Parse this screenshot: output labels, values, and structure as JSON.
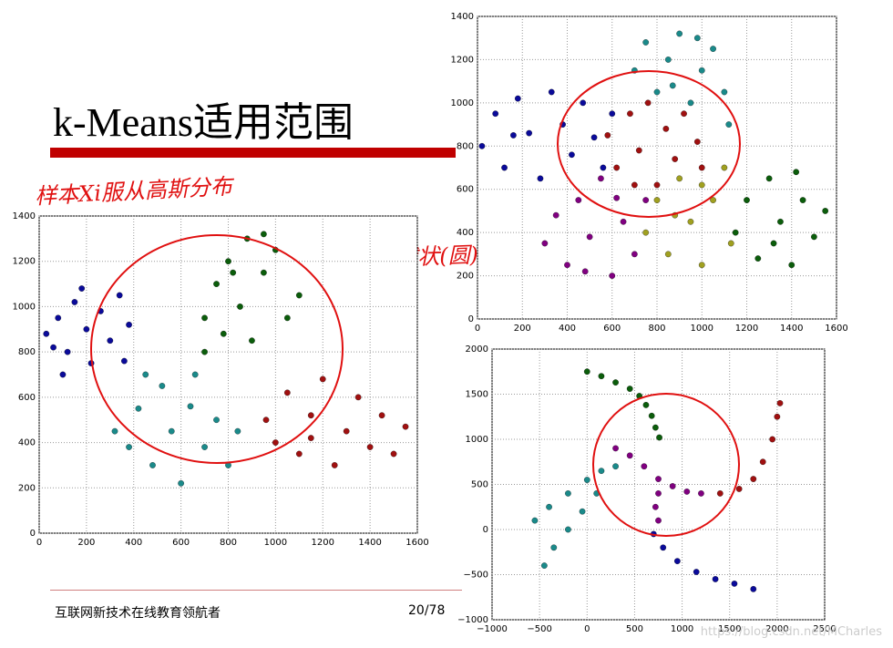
{
  "slide": {
    "title": "k-Means适用范围",
    "footer": "互联网新技术在线教育领航者",
    "page": "20/78",
    "annotations": [
      "样本Xi服从高斯分布",
      "簇→球状(圆)"
    ],
    "watermark": "https://blog.csdn.net/MCharles"
  },
  "chart_data": [
    {
      "type": "scatter",
      "xlim": [
        0,
        1600
      ],
      "ylim": [
        0,
        1400
      ],
      "xticks": [
        0,
        200,
        400,
        600,
        800,
        1000,
        1200,
        1400,
        1600
      ],
      "yticks": [
        0,
        200,
        400,
        600,
        800,
        1000,
        1200,
        1400
      ],
      "grid": true,
      "series": [
        {
          "color": "#0a0a9a",
          "x": [
            30,
            80,
            120,
            150,
            200,
            220,
            260,
            300,
            340,
            360,
            100,
            380,
            180,
            60
          ],
          "y": [
            880,
            950,
            800,
            1020,
            900,
            750,
            980,
            850,
            1050,
            760,
            700,
            920,
            1080,
            820
          ]
        },
        {
          "color": "#0b5d0b",
          "x": [
            700,
            750,
            800,
            850,
            880,
            900,
            950,
            1000,
            1050,
            700,
            780,
            1100,
            950,
            820
          ],
          "y": [
            950,
            1100,
            1200,
            1000,
            1300,
            850,
            1150,
            1250,
            950,
            800,
            880,
            1050,
            1320,
            1150
          ]
        },
        {
          "color": "#1a8a8a",
          "x": [
            320,
            380,
            420,
            480,
            520,
            560,
            600,
            640,
            700,
            750,
            800,
            450,
            660,
            840
          ],
          "y": [
            450,
            380,
            550,
            300,
            650,
            450,
            220,
            560,
            380,
            500,
            300,
            700,
            700,
            450
          ]
        },
        {
          "color": "#a01010",
          "x": [
            960,
            1000,
            1050,
            1100,
            1150,
            1200,
            1250,
            1300,
            1350,
            1400,
            1450,
            1550,
            1500,
            1150
          ],
          "y": [
            500,
            400,
            620,
            350,
            520,
            680,
            300,
            450,
            600,
            380,
            520,
            470,
            350,
            420
          ]
        }
      ]
    },
    {
      "type": "scatter",
      "xlim": [
        0,
        1600
      ],
      "ylim": [
        0,
        1400
      ],
      "xticks": [
        0,
        200,
        400,
        600,
        800,
        1000,
        1200,
        1400,
        1600
      ],
      "yticks": [
        0,
        200,
        400,
        600,
        800,
        1000,
        1200,
        1400
      ],
      "grid": true,
      "series": [
        {
          "color": "#0a0a9a",
          "x": [
            20,
            80,
            120,
            180,
            230,
            280,
            330,
            380,
            420,
            470,
            520,
            560,
            600,
            160
          ],
          "y": [
            800,
            950,
            700,
            1020,
            860,
            650,
            1050,
            900,
            760,
            1000,
            840,
            700,
            950,
            850
          ]
        },
        {
          "color": "#1a8a8a",
          "x": [
            700,
            750,
            800,
            850,
            900,
            950,
            1000,
            1050,
            1100,
            1120,
            980,
            870
          ],
          "y": [
            1150,
            1280,
            1050,
            1200,
            1320,
            1000,
            1150,
            1250,
            1050,
            900,
            1300,
            1080
          ]
        },
        {
          "color": "#a01010",
          "x": [
            580,
            620,
            680,
            720,
            760,
            800,
            840,
            880,
            920,
            980,
            1000,
            700
          ],
          "y": [
            850,
            700,
            950,
            780,
            1000,
            620,
            880,
            740,
            950,
            820,
            700,
            620
          ]
        },
        {
          "color": "#800080",
          "x": [
            300,
            350,
            400,
            450,
            500,
            550,
            600,
            650,
            700,
            750,
            480,
            620
          ],
          "y": [
            350,
            480,
            250,
            550,
            380,
            650,
            200,
            450,
            300,
            550,
            220,
            560
          ]
        },
        {
          "color": "#a0a020",
          "x": [
            750,
            800,
            850,
            900,
            950,
            1000,
            1050,
            1100,
            1130,
            880,
            1000
          ],
          "y": [
            400,
            550,
            300,
            650,
            450,
            250,
            550,
            700,
            350,
            480,
            620
          ]
        },
        {
          "color": "#0b5d0b",
          "x": [
            1150,
            1200,
            1250,
            1300,
            1350,
            1400,
            1450,
            1500,
            1550,
            1320,
            1420
          ],
          "y": [
            400,
            550,
            280,
            650,
            450,
            250,
            550,
            380,
            500,
            350,
            680
          ]
        }
      ]
    },
    {
      "type": "scatter",
      "xlim": [
        -1000,
        2500
      ],
      "ylim": [
        -1000,
        2000
      ],
      "xticks": [
        {
          "value": -1000,
          "label": "−1000"
        },
        {
          "value": -500,
          "label": "−500"
        },
        0,
        500,
        1000,
        1500,
        2000,
        2500
      ],
      "yticks": [
        {
          "value": -1000,
          "label": "−1000"
        },
        {
          "value": -500,
          "label": "−500"
        },
        0,
        500,
        1000,
        1500,
        2000
      ],
      "grid": true,
      "series": [
        {
          "color": "#0b5d0b",
          "x": [
            0,
            150,
            300,
            450,
            550,
            620,
            680,
            720,
            760
          ],
          "y": [
            1750,
            1700,
            1630,
            1560,
            1480,
            1380,
            1260,
            1130,
            1020
          ]
        },
        {
          "color": "#800080",
          "x": [
            300,
            450,
            600,
            750,
            900,
            1050,
            1200,
            750,
            720,
            750
          ],
          "y": [
            900,
            820,
            700,
            560,
            480,
            420,
            400,
            400,
            250,
            100
          ]
        },
        {
          "color": "#a01010",
          "x": [
            1400,
            1600,
            1750,
            1850,
            1950,
            2000,
            2030
          ],
          "y": [
            400,
            450,
            560,
            750,
            1000,
            1250,
            1400
          ]
        },
        {
          "color": "#0a0a9a",
          "x": [
            700,
            800,
            950,
            1150,
            1350,
            1550,
            1750
          ],
          "y": [
            -50,
            -200,
            -350,
            -470,
            -550,
            -600,
            -660
          ]
        },
        {
          "color": "#1a8a8a",
          "x": [
            -550,
            -400,
            -200,
            0,
            150,
            300,
            -450,
            -350,
            -200,
            -50,
            100
          ],
          "y": [
            100,
            250,
            400,
            550,
            650,
            700,
            -400,
            -200,
            0,
            200,
            400
          ]
        }
      ]
    }
  ]
}
